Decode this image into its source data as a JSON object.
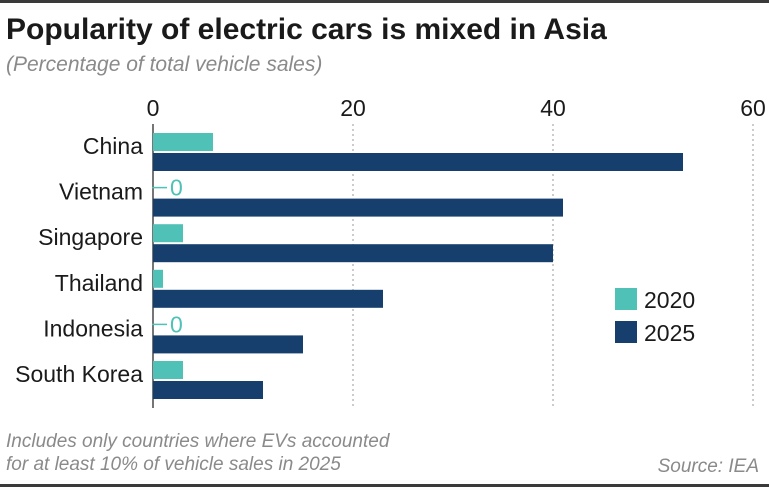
{
  "header": {
    "title": "Popularity of electric cars is mixed in Asia",
    "subtitle": "(Percentage of total vehicle sales)"
  },
  "footer": {
    "note_line1": "Includes only countries where EVs accounted",
    "note_line2": "for at least 10% of vehicle sales in 2025",
    "source": "Source: IEA"
  },
  "chart_data": {
    "type": "bar",
    "orientation": "horizontal",
    "categories": [
      "China",
      "Vietnam",
      "Singapore",
      "Thailand",
      "Indonesia",
      "South Korea"
    ],
    "series": [
      {
        "name": "2020",
        "values": [
          6,
          0,
          3,
          1,
          0,
          3
        ],
        "color": "#4fc1b6"
      },
      {
        "name": "2025",
        "values": [
          53,
          41,
          40,
          23,
          15,
          11
        ],
        "color": "#173f6e"
      }
    ],
    "zero_value_label": "0",
    "xlim": [
      0,
      60
    ],
    "xticks": [
      "0",
      "20",
      "40",
      "60"
    ],
    "grid": true,
    "legend_position": "right"
  }
}
